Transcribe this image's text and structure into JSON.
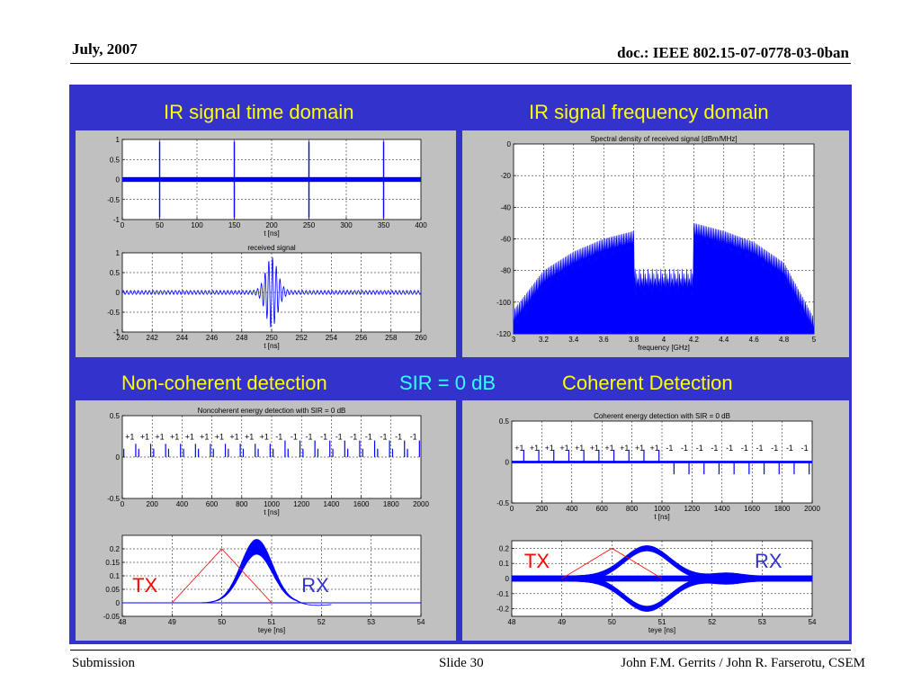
{
  "header": {
    "date": "July, 2007",
    "doc": "doc.: IEEE 802.15-07-0778-03-0ban"
  },
  "footer": {
    "left": "Submission",
    "center": "Slide 30",
    "right": "John F.M. Gerrits / John R. Farserotu, CSEM"
  },
  "titles": {
    "time_domain": "IR signal time domain",
    "freq_domain": "IR signal frequency domain",
    "noncoherent": "Non-coherent detection",
    "sir": "SIR = 0 dB",
    "coherent": "Coherent Detection"
  },
  "colors": {
    "frame": "#3333cc",
    "title": "#ffff00",
    "sir": "#33ffff",
    "signal": "#0000ff",
    "tx": "#ff0000",
    "rx": "#3333cc",
    "plot_bg": "#c0c0c0"
  },
  "chart_data": [
    {
      "id": "time_full",
      "type": "line",
      "title": "",
      "xlabel": "t [ns]",
      "ylabel": "",
      "xlim": [
        0,
        400
      ],
      "ylim": [
        -1,
        1
      ],
      "xticks": [
        0,
        50,
        100,
        150,
        200,
        250,
        300,
        350,
        400
      ],
      "yticks": [
        -1,
        -0.5,
        0,
        0.5,
        1
      ],
      "pulses_at_ns": [
        50,
        150,
        250,
        350
      ],
      "pulse_amplitude": 1,
      "noise_band": 0.06,
      "grid": true
    },
    {
      "id": "time_zoom",
      "type": "line",
      "title": "received signal",
      "xlabel": "t [ns]",
      "ylabel": "",
      "xlim": [
        240,
        260
      ],
      "ylim": [
        -1,
        1
      ],
      "xticks": [
        240,
        242,
        244,
        246,
        248,
        250,
        252,
        254,
        256,
        258,
        260
      ],
      "yticks": [
        -1,
        -0.5,
        0,
        0.5,
        1
      ],
      "pulse_center_ns": 250,
      "pulse_amplitude": 0.85,
      "background_amplitude": 0.05,
      "grid": true
    },
    {
      "id": "spectrum",
      "type": "area",
      "title": "Spectral density of received signal [dBm/MHz]",
      "xlabel": "frequency [GHz]",
      "ylabel": "",
      "xlim": [
        3,
        5
      ],
      "ylim": [
        -120,
        0
      ],
      "xticks": [
        3,
        3.2,
        3.4,
        3.6,
        3.8,
        4,
        4.2,
        4.4,
        4.6,
        4.8,
        5
      ],
      "yticks": [
        -120,
        -100,
        -80,
        -60,
        -40,
        -20,
        0
      ],
      "envelope": {
        "x": [
          3,
          3.2,
          3.4,
          3.6,
          3.8,
          4,
          4.2,
          4.4,
          4.6,
          4.8,
          5
        ],
        "y": [
          -105,
          -80,
          -68,
          -60,
          -55,
          -50,
          -50,
          -55,
          -62,
          -75,
          -110
        ]
      },
      "notch": {
        "x": [
          3.8,
          4.2
        ],
        "y": -85
      },
      "grid": true
    },
    {
      "id": "noncoh_energy",
      "type": "bar",
      "title": "Noncoherent energy detection with SIR = 0 dB",
      "xlabel": "t [ns]",
      "ylabel": "",
      "xlim": [
        0,
        2000
      ],
      "ylim": [
        -0.5,
        0.5
      ],
      "xticks": [
        0,
        200,
        400,
        600,
        800,
        1000,
        1200,
        1400,
        1600,
        1800,
        2000
      ],
      "yticks": [
        -0.5,
        0,
        0.5
      ],
      "bit_labels": [
        "+1",
        "+1",
        "+1",
        "+1",
        "+1",
        "+1",
        "+1",
        "+1",
        "+1",
        "+1",
        "-1",
        "-1",
        "-1",
        "-1",
        "-1",
        "-1",
        "-1",
        "-1",
        "-1",
        "-1"
      ],
      "bit_period_ns": 100,
      "one_height": 0.16,
      "zero_height": 0.2,
      "grid": true
    },
    {
      "id": "noncoh_eye",
      "type": "line",
      "title": "",
      "xlabel": "teye [ns]",
      "ylabel": "",
      "xlim": [
        48,
        54
      ],
      "ylim": [
        -0.05,
        0.25
      ],
      "xticks": [
        48,
        49,
        50,
        51,
        52,
        53,
        54
      ],
      "yticks": [
        -0.05,
        0,
        0.05,
        0.1,
        0.15,
        0.2
      ],
      "tx_label": "TX",
      "rx_label": "RX",
      "tx_triangle": {
        "x": [
          49,
          50,
          51
        ],
        "y": [
          0,
          0.2,
          0
        ]
      },
      "rx_peak": {
        "x": 50.7,
        "y_top": 0.235,
        "y_bottom": 0.18
      },
      "grid": true
    },
    {
      "id": "coh_energy",
      "type": "bar",
      "title": "Coherent energy detection with SIR = 0 dB",
      "xlabel": "t [ns]",
      "ylabel": "",
      "xlim": [
        0,
        2000
      ],
      "ylim": [
        -0.5,
        0.5
      ],
      "xticks": [
        0,
        200,
        400,
        600,
        800,
        1000,
        1200,
        1400,
        1600,
        1800,
        2000
      ],
      "yticks": [
        -0.5,
        0,
        0.5
      ],
      "bit_labels": [
        "+1",
        "+1",
        "+1",
        "+1",
        "+1",
        "+1",
        "+1",
        "+1",
        "+1",
        "+1",
        "-1",
        "-1",
        "-1",
        "-1",
        "-1",
        "-1",
        "-1",
        "-1",
        "-1",
        "-1"
      ],
      "bit_period_ns": 100,
      "amplitude": 0.2,
      "grid": true
    },
    {
      "id": "coh_eye",
      "type": "line",
      "title": "",
      "xlabel": "teye [ns]",
      "ylabel": "",
      "xlim": [
        48,
        54
      ],
      "ylim": [
        -0.25,
        0.25
      ],
      "xticks": [
        48,
        49,
        50,
        51,
        52,
        53,
        54
      ],
      "yticks": [
        -0.2,
        -0.1,
        0,
        0.1,
        0.2
      ],
      "tx_label": "TX",
      "rx_label": "RX",
      "tx_triangle": {
        "x": [
          49,
          50,
          51
        ],
        "y": [
          0,
          0.2,
          0
        ]
      },
      "rx_peak": {
        "x": 50.7,
        "y": 0.2
      },
      "grid": true
    }
  ]
}
